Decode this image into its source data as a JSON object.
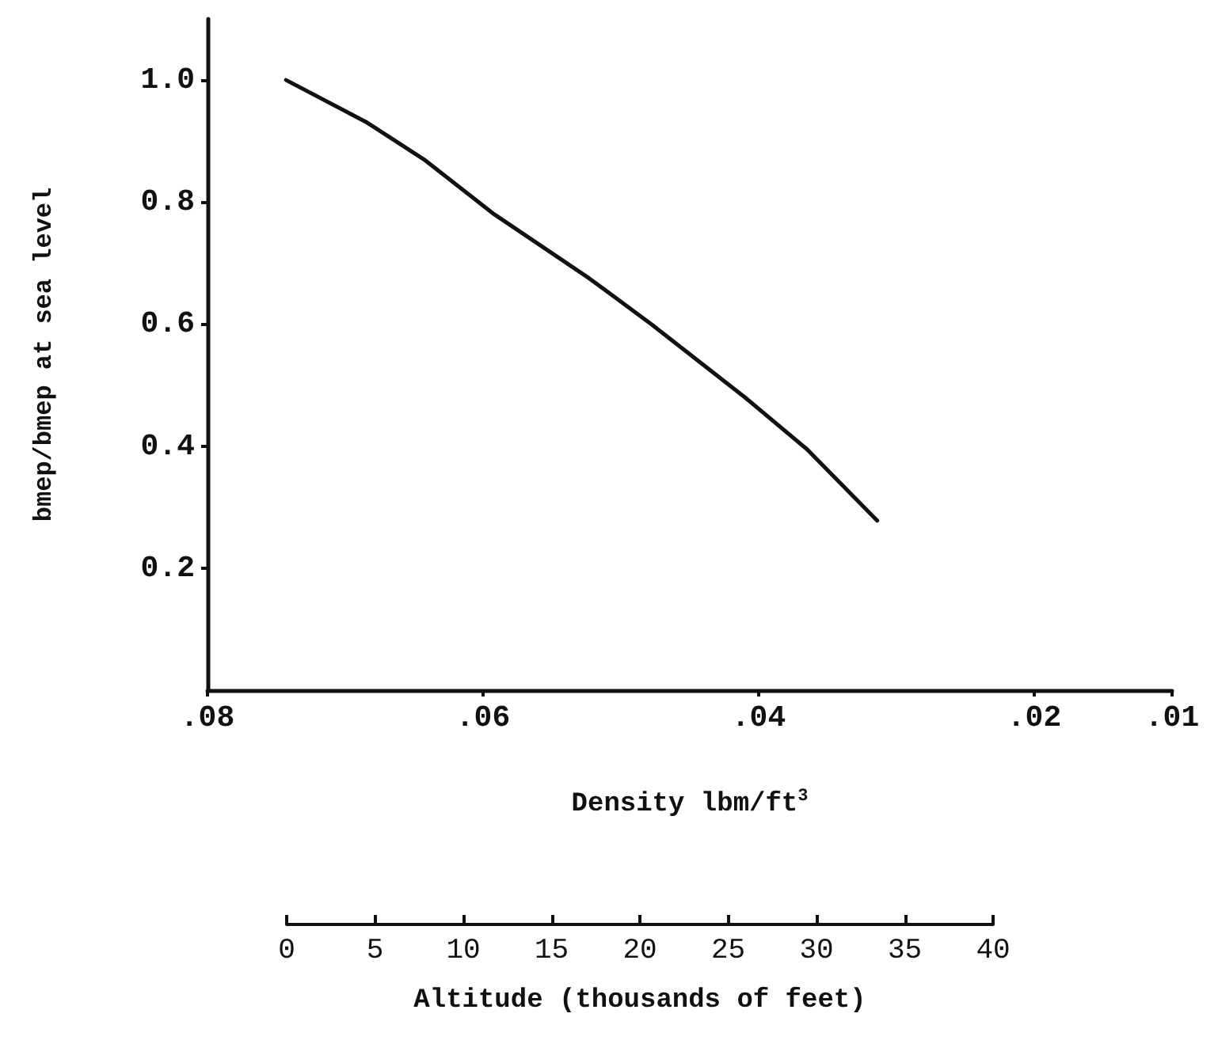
{
  "chart_data": {
    "type": "line",
    "xlabel": "Density lbm/ft$^{3}$",
    "ylabel": "bmep/bmep at sea level",
    "x2label": "Altitude (thousands of feet)",
    "x": [
      0.0743,
      0.0684,
      0.0643,
      0.0592,
      0.0523,
      0.0478,
      0.041,
      0.0365,
      0.0314
    ],
    "values": [
      1.0,
      0.93,
      0.87,
      0.78,
      0.675,
      0.6,
      0.48,
      0.395,
      0.278
    ],
    "color": "#111111",
    "xlim": [
      0.08,
      0.01
    ],
    "xticks": [
      {
        "value": 0.08,
        "label": ".08"
      },
      {
        "value": 0.06,
        "label": ".06"
      },
      {
        "value": 0.04,
        "label": ".04"
      },
      {
        "value": 0.02,
        "label": ".02"
      },
      {
        "value": 0.01,
        "label": ".01"
      }
    ],
    "ylim": [
      0,
      1.1
    ],
    "yticks": [
      {
        "value": 0.2,
        "label": "0.2"
      },
      {
        "value": 0.4,
        "label": "0.4"
      },
      {
        "value": 0.6,
        "label": "0.6"
      },
      {
        "value": 0.8,
        "label": "0.8"
      },
      {
        "value": 1.0,
        "label": "1.0"
      }
    ],
    "x2lim": [
      0,
      40
    ],
    "x2ticks": [
      0,
      5,
      10,
      15,
      20,
      25,
      30,
      35,
      40
    ],
    "grid": false,
    "marker": "none",
    "line_style": "solid"
  }
}
